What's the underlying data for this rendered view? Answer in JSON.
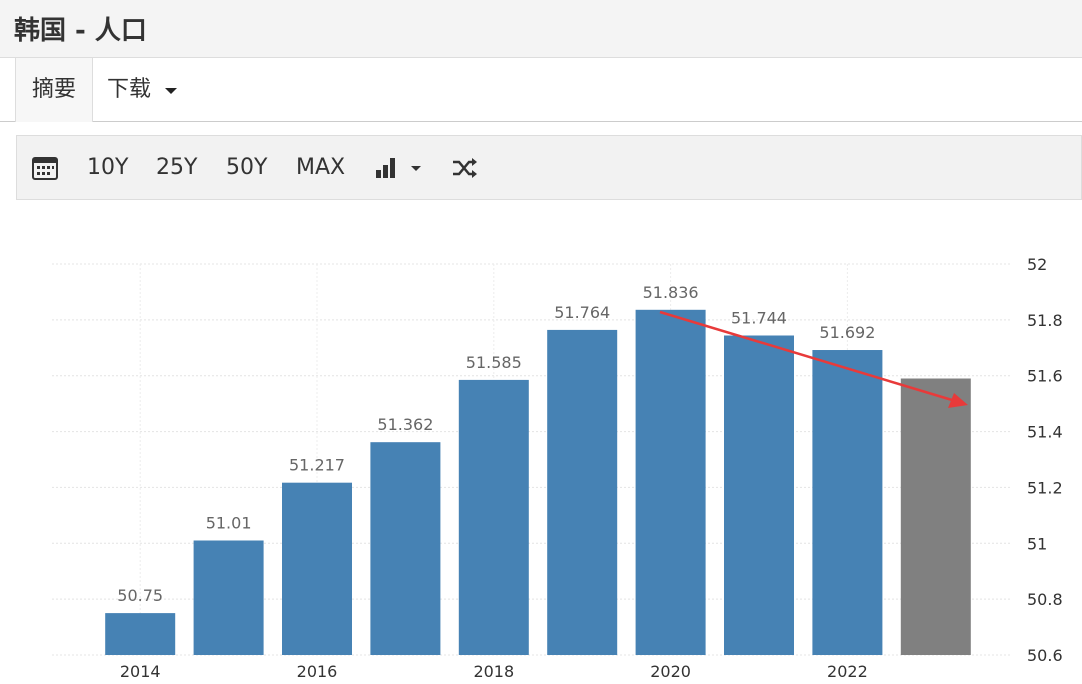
{
  "header": {
    "title": "韩国 - 人口"
  },
  "tabs": [
    "摘要",
    "下载"
  ],
  "toolbar": [
    "10Y",
    "25Y",
    "50Y",
    "MAX"
  ],
  "chart_data": {
    "type": "bar",
    "categories": [
      "2014",
      null,
      "2016",
      null,
      "2018",
      null,
      "2020",
      null,
      "2022",
      null
    ],
    "values": [
      50.75,
      51.01,
      51.217,
      51.362,
      51.585,
      51.764,
      51.836,
      51.744,
      51.692,
      51.59
    ],
    "value_labels": [
      "50.75",
      "51.01",
      "51.217",
      "51.362",
      "51.585",
      "51.764",
      "51.836",
      "51.744",
      "51.692",
      null
    ],
    "colors": [
      "#4682b4",
      "#4682b4",
      "#4682b4",
      "#4682b4",
      "#4682b4",
      "#4682b4",
      "#4682b4",
      "#4682b4",
      "#4682b4",
      "#808080"
    ],
    "ylim": [
      50.6,
      52
    ],
    "yticks": [
      50.6,
      50.8,
      51,
      51.2,
      51.4,
      51.6,
      51.8,
      52
    ],
    "grid": true
  }
}
